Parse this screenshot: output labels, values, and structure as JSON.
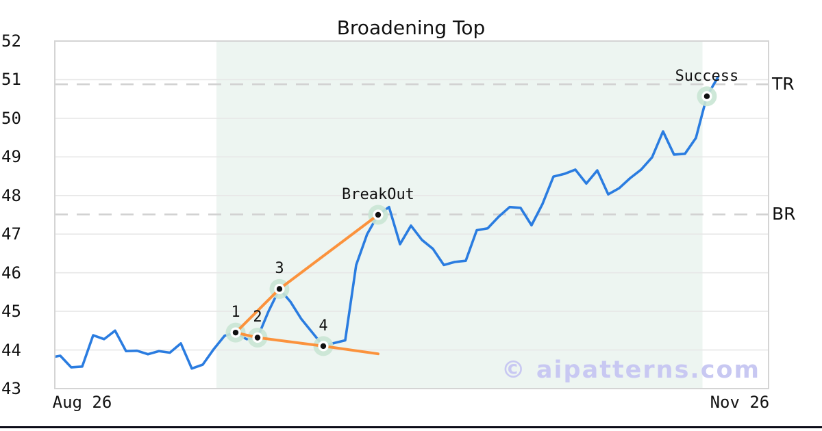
{
  "title": "Broadening Top",
  "watermark": "© aipatterns.com",
  "colors": {
    "price_line": "#2a7ce0",
    "trendline": "#fb923c",
    "marker_halo": "#c9e6d4",
    "marker_dot": "#111111",
    "pattern_shade": "#edf5f1",
    "dashed_level": "#d2d2d2",
    "gridline": "#e7e7e7",
    "plot_border": "#d4d4d4",
    "watermark_color": "#c8c8f2",
    "bottom_rule": "#0c0c18"
  },
  "chart_data": {
    "type": "line",
    "title": "Broadening Top",
    "xlabel": "",
    "ylabel": "",
    "ylim": [
      43,
      52
    ],
    "xlim": [
      0.5,
      65.63
    ],
    "grid": "horizontal",
    "legend": "none",
    "yticks": [
      43,
      44,
      45,
      46,
      47,
      48,
      49,
      50,
      51,
      52
    ],
    "xticks": [
      {
        "label": "Aug 26",
        "i": 3
      },
      {
        "label": "Nov 26",
        "i": 63
      }
    ],
    "series": [
      {
        "name": "price",
        "values": [
          43.8,
          43.85,
          43.55,
          43.57,
          44.38,
          44.28,
          44.5,
          43.97,
          43.98,
          43.89,
          43.97,
          43.93,
          44.17,
          43.52,
          43.62,
          44.02,
          44.37,
          44.45,
          44.28,
          44.32,
          45.0,
          45.58,
          45.25,
          44.8,
          44.45,
          44.1,
          44.18,
          44.25,
          46.2,
          47.0,
          47.5,
          47.7,
          46.74,
          47.22,
          46.85,
          46.62,
          46.2,
          46.28,
          46.31,
          47.1,
          47.15,
          47.45,
          47.7,
          47.68,
          47.23,
          47.78,
          48.49,
          48.56,
          48.67,
          48.31,
          48.65,
          48.03,
          48.19,
          48.45,
          48.67,
          48.99,
          49.66,
          49.06,
          49.08,
          49.49,
          50.57,
          51.06
        ]
      }
    ],
    "levels": [
      {
        "label": "TR",
        "value": 50.88
      },
      {
        "label": "BR",
        "value": 47.51
      }
    ],
    "pattern_shading": {
      "start_i": 15.25,
      "end_i": 59.6
    },
    "trendlines": [
      {
        "name": "upper-broadening-line",
        "points": [
          [
            17,
            44.45
          ],
          [
            21,
            45.58
          ],
          [
            30,
            47.5
          ]
        ]
      },
      {
        "name": "lower-broadening-line",
        "points": [
          [
            17,
            44.45
          ],
          [
            19,
            44.32
          ],
          [
            25,
            44.1
          ],
          [
            30,
            43.9
          ]
        ]
      }
    ],
    "annotations": [
      {
        "label": "1",
        "i": 17,
        "value": 44.45
      },
      {
        "label": "2",
        "i": 19,
        "value": 44.32
      },
      {
        "label": "3",
        "i": 21,
        "value": 45.58
      },
      {
        "label": "4",
        "i": 25,
        "value": 44.1
      },
      {
        "label": "BreakOut",
        "i": 30,
        "value": 47.5
      },
      {
        "label": "Success",
        "i": 60,
        "value": 50.57
      }
    ]
  }
}
